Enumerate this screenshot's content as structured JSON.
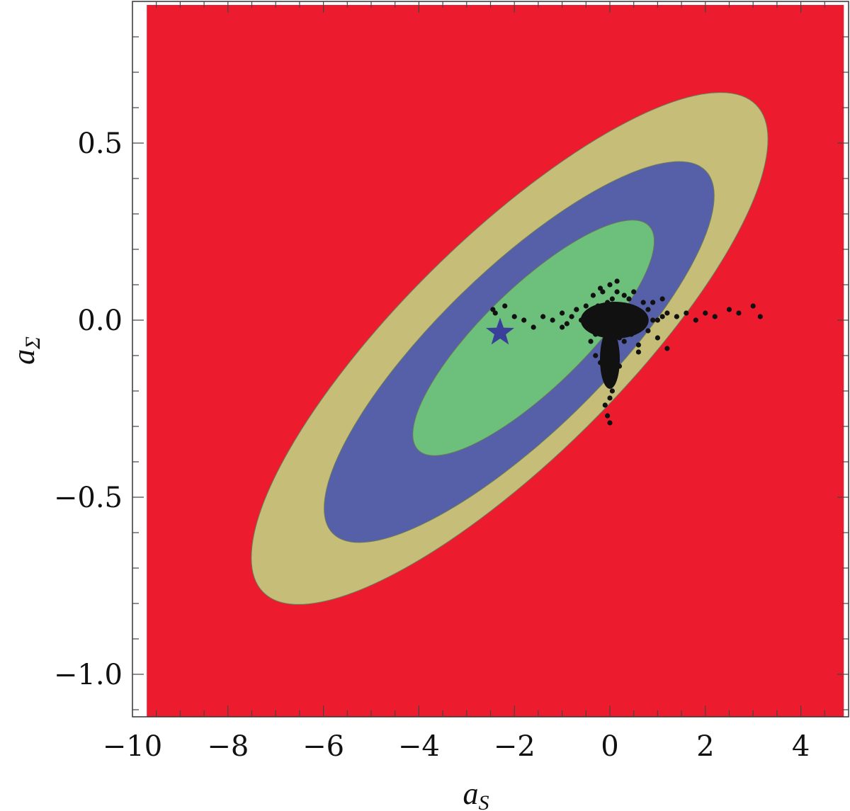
{
  "chart_data": {
    "type": "scatter",
    "xlabel": "a",
    "xlabel_sub": "S",
    "ylabel": "a",
    "ylabel_sub": "Σ",
    "xlim": [
      -10.0,
      5.0
    ],
    "ylim": [
      -1.12,
      0.9
    ],
    "fill_xlim": [
      -9.7,
      4.9
    ],
    "fill_ylim": [
      -1.12,
      0.89
    ],
    "x_ticks": [
      -10,
      -8,
      -6,
      -4,
      -2,
      0,
      2,
      4
    ],
    "x_tick_labels": [
      "−10",
      "−8",
      "−6",
      "−4",
      "−2",
      "0",
      "2",
      "4"
    ],
    "y_ticks": [
      0.5,
      0.0,
      -0.5,
      -1.0
    ],
    "y_tick_labels": [
      "0.5",
      "0.0",
      "−0.5",
      "−1.0"
    ],
    "grid": false,
    "colors": {
      "background": "#ec1c2e",
      "outer_region": "#c5bd78",
      "middle_region": "#5560a8",
      "inner_region": "#6dc07c",
      "points": "#111111",
      "star": "#3a3f9a",
      "frame": "#333333"
    },
    "regions": [
      {
        "level": "outer",
        "center": [
          -2.1,
          -0.08
        ],
        "semi_axis_x": 5.55,
        "semi_axis_y": 0.74,
        "rotation_deg": -5.4
      },
      {
        "level": "middle",
        "center": [
          -1.9,
          -0.09
        ],
        "semi_axis_x": 4.2,
        "semi_axis_y": 0.55,
        "rotation_deg": -5.4
      },
      {
        "level": "inner",
        "center": [
          -1.6,
          -0.05
        ],
        "semi_axis_x": 2.6,
        "semi_axis_y": 0.34,
        "rotation_deg": -5.4
      }
    ],
    "best_fit": {
      "x": -2.3,
      "y": -0.035
    },
    "points": {
      "x": [
        0.0,
        0.1,
        -0.1,
        0.2,
        -0.2,
        0.3,
        -0.3,
        0.05,
        -0.05,
        0.15,
        0.25,
        -0.15,
        -0.25,
        0.35,
        0.4,
        -0.4,
        0.5,
        -0.5,
        0.6,
        0.7,
        0.8,
        0.9,
        1.0,
        1.1,
        1.2,
        1.4,
        1.6,
        1.8,
        2.0,
        2.2,
        2.5,
        2.7,
        3.0,
        3.15,
        -0.6,
        -0.7,
        -0.8,
        -0.9,
        -1.0,
        -1.2,
        -1.4,
        -1.6,
        -1.8,
        -2.0,
        -2.2,
        -2.4,
        -2.45,
        0.0,
        0.05,
        -0.05,
        0.0,
        0.1,
        -0.1,
        0.0,
        -0.05,
        0.05,
        0.0,
        -0.1,
        -0.05,
        0.0,
        0.2,
        0.3,
        0.45,
        0.6,
        0.8,
        1.0,
        1.2,
        -0.3,
        -0.4,
        -0.3,
        -0.2,
        -0.1,
        0.1,
        0.2,
        0.1,
        0.0,
        -0.2,
        0.3,
        0.5,
        0.7,
        0.4,
        -0.5,
        -0.7,
        -1.0,
        0.9,
        1.1,
        0.6,
        -0.35,
        0.15,
        -0.15,
        0.25
      ],
      "y": [
        0.0,
        0.02,
        -0.01,
        0.03,
        0.01,
        0.0,
        0.02,
        0.06,
        0.05,
        0.08,
        -0.02,
        -0.03,
        0.04,
        0.03,
        0.01,
        0.02,
        0.0,
        -0.01,
        0.02,
        0.01,
        0.03,
        0.0,
        0.0,
        0.01,
        0.02,
        0.01,
        0.02,
        0.0,
        0.02,
        0.01,
        0.03,
        0.02,
        0.04,
        0.01,
        0.0,
        0.03,
        0.01,
        -0.01,
        0.02,
        0.0,
        0.01,
        -0.02,
        0.0,
        0.01,
        0.04,
        0.02,
        0.03,
        -0.05,
        -0.08,
        -0.1,
        -0.12,
        -0.14,
        -0.07,
        -0.16,
        -0.18,
        -0.2,
        -0.22,
        -0.24,
        -0.27,
        -0.29,
        -0.05,
        -0.06,
        -0.04,
        -0.07,
        -0.03,
        -0.05,
        -0.08,
        -0.04,
        -0.06,
        -0.1,
        -0.12,
        -0.09,
        -0.11,
        -0.13,
        -0.15,
        0.1,
        0.09,
        0.07,
        0.08,
        0.05,
        0.06,
        0.04,
        0.03,
        -0.02,
        0.05,
        0.06,
        -0.09,
        0.07,
        0.11,
        0.08,
        -0.04
      ]
    }
  }
}
